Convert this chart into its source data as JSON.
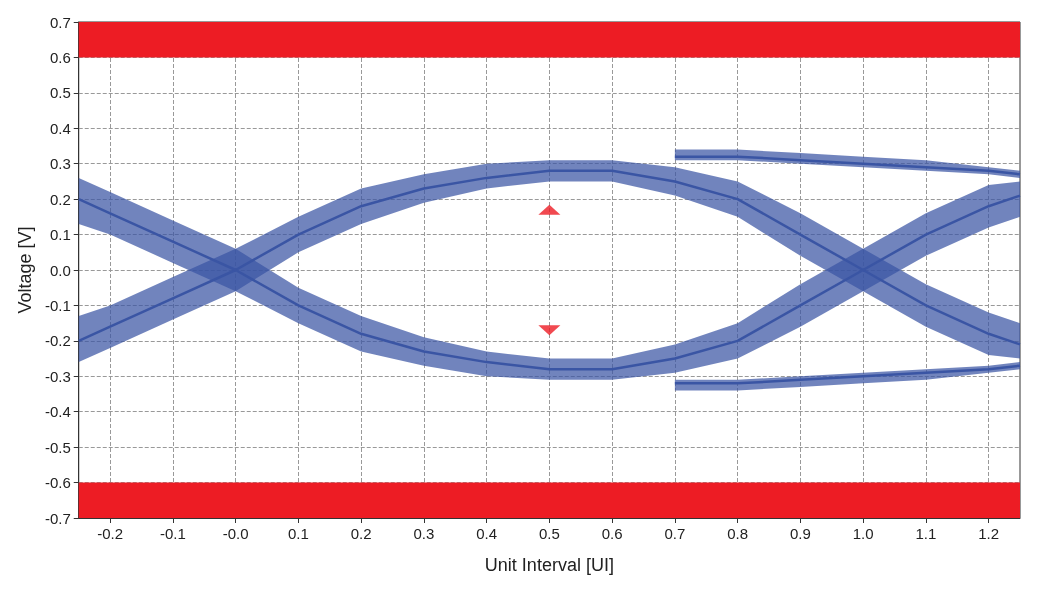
{
  "chart_data": {
    "type": "line",
    "xlabel": "Unit Interval [UI]",
    "ylabel": "Voltage [V]",
    "x": [
      -0.25,
      -0.2,
      -0.1,
      0,
      0.1,
      0.2,
      0.3,
      0.4,
      0.5,
      0.6,
      0.7,
      0.8,
      0.9,
      1.0,
      1.1,
      1.2,
      1.25
    ],
    "series": [
      {
        "color": "#3a55a4",
        "values": [
          -0.2,
          -0.16,
          -0.08,
          0,
          0.1,
          0.18,
          0.23,
          0.26,
          0.28,
          0.28,
          0.25,
          0.2,
          0.1,
          0,
          -0.1,
          -0.18,
          -0.21
        ],
        "lower": [
          -0.26,
          -0.22,
          -0.14,
          -0.06,
          0.05,
          0.13,
          0.19,
          0.23,
          0.25,
          0.25,
          0.21,
          0.15,
          0.04,
          -0.06,
          -0.16,
          -0.24,
          -0.25
        ],
        "upper": [
          -0.13,
          -0.1,
          -0.02,
          0.06,
          0.15,
          0.23,
          0.27,
          0.3,
          0.31,
          0.31,
          0.29,
          0.25,
          0.16,
          0.06,
          -0.04,
          -0.12,
          -0.15
        ]
      },
      {
        "color": "#3a55a4",
        "values": [
          0.2,
          0.16,
          0.08,
          0,
          -0.1,
          -0.18,
          -0.23,
          -0.26,
          -0.28,
          -0.28,
          -0.25,
          -0.2,
          -0.1,
          0,
          0.1,
          0.18,
          0.21
        ],
        "lower": [
          0.13,
          0.1,
          0.02,
          -0.06,
          -0.15,
          -0.23,
          -0.27,
          -0.3,
          -0.31,
          -0.31,
          -0.29,
          -0.25,
          -0.16,
          -0.06,
          0.04,
          0.12,
          0.15
        ],
        "upper": [
          0.26,
          0.22,
          0.14,
          0.06,
          -0.05,
          -0.13,
          -0.19,
          -0.23,
          -0.25,
          -0.25,
          -0.21,
          -0.15,
          -0.04,
          0.06,
          0.16,
          0.24,
          0.25
        ]
      },
      {
        "color": "#3a55a4",
        "x": [
          0.7,
          0.8,
          0.9,
          1.0,
          1.1,
          1.2,
          1.25
        ],
        "values": [
          0.32,
          0.32,
          0.31,
          0.3,
          0.29,
          0.28,
          0.27
        ],
        "lower": [
          0.31,
          0.31,
          0.3,
          0.29,
          0.28,
          0.27,
          0.26
        ],
        "upper": [
          0.34,
          0.34,
          0.33,
          0.32,
          0.31,
          0.29,
          0.28
        ]
      },
      {
        "color": "#3a55a4",
        "x": [
          0.7,
          0.8,
          0.9,
          1.0,
          1.1,
          1.2,
          1.25
        ],
        "values": [
          -0.32,
          -0.32,
          -0.31,
          -0.3,
          -0.29,
          -0.28,
          -0.27
        ],
        "lower": [
          -0.34,
          -0.34,
          -0.33,
          -0.32,
          -0.31,
          -0.29,
          -0.28
        ],
        "upper": [
          -0.31,
          -0.31,
          -0.3,
          -0.29,
          -0.28,
          -0.27,
          -0.26
        ]
      },
      {
        "type": "scatter",
        "color": "#ed1c24",
        "marker": "triangle",
        "x": [
          0.5,
          0.5
        ],
        "values": [
          0.17,
          -0.17
        ]
      }
    ],
    "bands": [
      {
        "axis": "y",
        "from": 0.6,
        "to": 0.7,
        "color": "#ed1c24"
      },
      {
        "axis": "y",
        "from": -0.7,
        "to": -0.6,
        "color": "#ed1c24"
      }
    ],
    "xlim": [
      -0.25,
      1.25
    ],
    "xticks": [
      -0.2,
      -0.1,
      {
        "value": 0,
        "label": "-0.0"
      },
      0.1,
      0.2,
      0.3,
      0.4,
      0.5,
      0.6,
      0.7,
      0.8,
      0.9,
      {
        "value": 1,
        "label": "1.0"
      },
      1.1,
      1.2
    ],
    "ylim": [
      -0.7,
      0.7
    ],
    "yticks": [
      -0.7,
      -0.6,
      -0.5,
      -0.4,
      -0.3,
      -0.2,
      -0.1,
      {
        "value": 0,
        "label": "0.0"
      },
      0.1,
      0.2,
      0.3,
      0.4,
      0.5,
      0.6,
      0.7
    ],
    "grid": true,
    "marker": "none",
    "line_style": "solid"
  }
}
